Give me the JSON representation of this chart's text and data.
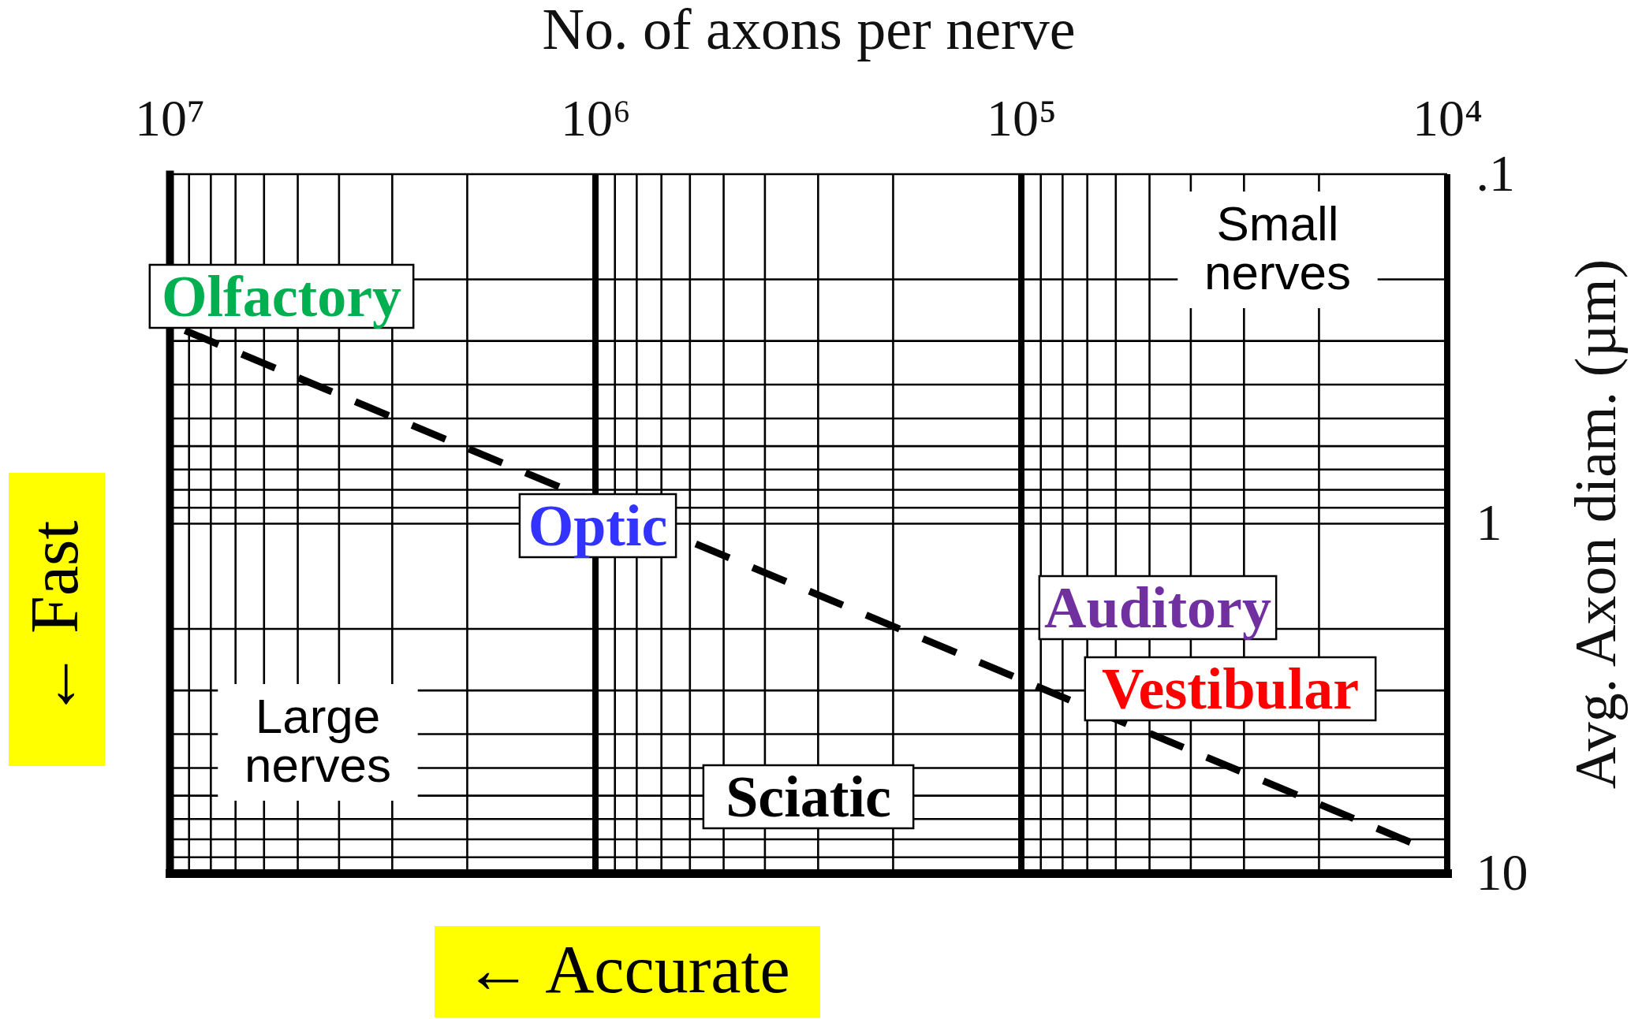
{
  "chart_data": {
    "type": "line",
    "xlabel": "No. of axons per nerve",
    "ylabel": "Avg. Axon diam. (µm)",
    "log": "xy",
    "xlim": [
      10000000,
      10000
    ],
    "ylim": [
      10,
      0.1
    ],
    "xticks": [
      {
        "value": 10000000,
        "label": "10⁷"
      },
      {
        "value": 1000000,
        "label": "10⁶"
      },
      {
        "value": 100000,
        "label": "10⁵"
      },
      {
        "value": 10000,
        "label": "10⁴"
      }
    ],
    "yticks": [
      {
        "value": 0.1,
        "label": ".1"
      },
      1,
      10
    ],
    "grid": true,
    "line_style": "dashed",
    "series": [
      {
        "color": "#000000",
        "x": [
          9200000,
          11000
        ],
        "values": [
          0.28,
          8.6
        ]
      }
    ],
    "annotations": [
      "Olfactory",
      "Optic",
      "Auditory",
      "Vestibular",
      "Sciatic",
      "Small nerves",
      "Large nerves",
      "← Fast",
      "← Accurate"
    ]
  }
}
